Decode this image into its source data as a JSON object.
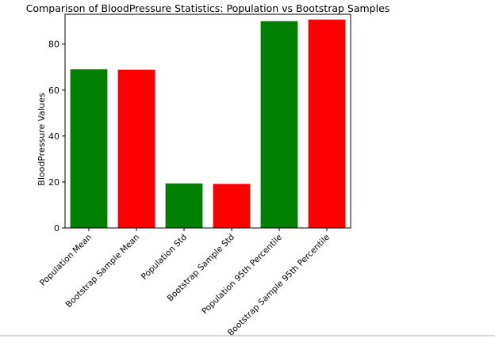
{
  "chart_data": {
    "type": "bar",
    "title": "Comparison of BloodPressure Statistics: Population vs Bootstrap Samples",
    "xlabel": "",
    "ylabel": "BloodPressure Values",
    "ylim": [
      0,
      93
    ],
    "yticks": [
      0,
      20,
      40,
      60,
      80
    ],
    "categories": [
      "Population Mean",
      "Bootstrap Sample Mean",
      "Population Std",
      "Bootstrap Sample Std",
      "Population 95th Percentile",
      "Bootstrap Sample 95th Percentile"
    ],
    "values": [
      69.1,
      68.9,
      19.4,
      19.2,
      90.0,
      90.7
    ],
    "bar_colors": [
      "#008000",
      "#ff0000",
      "#008000",
      "#ff0000",
      "#008000",
      "#ff0000"
    ],
    "grid": false,
    "legend": "none"
  }
}
